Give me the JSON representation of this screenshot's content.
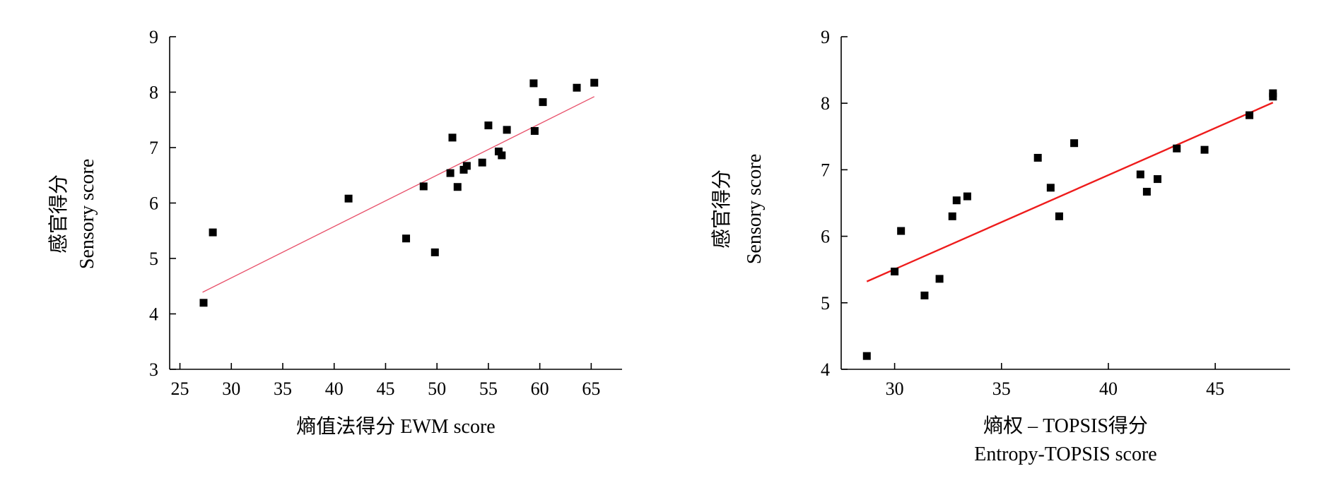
{
  "colors": {
    "axis": "#000000",
    "point": "#000000",
    "left_fit": "#e8506a",
    "right_fit": "#ee1c1c"
  },
  "chart_data": [
    {
      "type": "scatter",
      "title": "",
      "xlabel": "熵值法得分 EWM score",
      "xlabel_lines": [
        "熵值法得分 EWM score"
      ],
      "ylabel_cn": "感官得分",
      "ylabel_en": "Sensory score",
      "xlim": [
        24,
        68
      ],
      "ylim": [
        3,
        9
      ],
      "xticks": [
        25,
        30,
        35,
        40,
        45,
        50,
        55,
        60,
        65
      ],
      "yticks": [
        3,
        4,
        5,
        6,
        7,
        8,
        9
      ],
      "grid": false,
      "points": [
        {
          "x": 27.3,
          "y": 4.2
        },
        {
          "x": 28.2,
          "y": 5.47
        },
        {
          "x": 41.4,
          "y": 6.08
        },
        {
          "x": 47.0,
          "y": 5.36
        },
        {
          "x": 48.7,
          "y": 6.3
        },
        {
          "x": 49.8,
          "y": 5.11
        },
        {
          "x": 51.3,
          "y": 6.54
        },
        {
          "x": 51.5,
          "y": 7.18
        },
        {
          "x": 52.0,
          "y": 6.29
        },
        {
          "x": 52.6,
          "y": 6.6
        },
        {
          "x": 52.9,
          "y": 6.67
        },
        {
          "x": 54.4,
          "y": 6.73
        },
        {
          "x": 55.0,
          "y": 7.4
        },
        {
          "x": 56.0,
          "y": 6.93
        },
        {
          "x": 56.3,
          "y": 6.86
        },
        {
          "x": 56.8,
          "y": 7.32
        },
        {
          "x": 59.4,
          "y": 8.16
        },
        {
          "x": 59.5,
          "y": 7.3
        },
        {
          "x": 60.3,
          "y": 7.82
        },
        {
          "x": 63.6,
          "y": 8.08
        },
        {
          "x": 65.3,
          "y": 8.17
        }
      ],
      "fit_line": {
        "x": [
          27.2,
          65.3
        ],
        "y": [
          4.39,
          7.92
        ]
      }
    },
    {
      "type": "scatter",
      "title": "",
      "xlabel": "熵权 – TOPSIS得分 Entropy-TOPSIS  score",
      "xlabel_lines": [
        "熵权 – TOPSIS得分",
        "Entropy-TOPSIS  score"
      ],
      "ylabel_cn": "感官得分",
      "ylabel_en": "Sensory score",
      "xlim": [
        27.5,
        48.5
      ],
      "ylim": [
        4,
        9
      ],
      "xticks": [
        30,
        35,
        40,
        45
      ],
      "yticks": [
        4,
        5,
        6,
        7,
        8,
        9
      ],
      "grid": false,
      "points": [
        {
          "x": 28.7,
          "y": 4.2
        },
        {
          "x": 30.0,
          "y": 5.47
        },
        {
          "x": 30.3,
          "y": 6.08
        },
        {
          "x": 31.4,
          "y": 5.11
        },
        {
          "x": 32.1,
          "y": 5.36
        },
        {
          "x": 32.7,
          "y": 6.3
        },
        {
          "x": 32.9,
          "y": 6.54
        },
        {
          "x": 33.4,
          "y": 6.6
        },
        {
          "x": 36.7,
          "y": 7.18
        },
        {
          "x": 37.3,
          "y": 6.73
        },
        {
          "x": 37.7,
          "y": 6.3
        },
        {
          "x": 38.4,
          "y": 7.4
        },
        {
          "x": 41.5,
          "y": 6.93
        },
        {
          "x": 41.8,
          "y": 6.67
        },
        {
          "x": 42.3,
          "y": 6.86
        },
        {
          "x": 43.2,
          "y": 7.32
        },
        {
          "x": 44.5,
          "y": 7.3
        },
        {
          "x": 46.6,
          "y": 7.82
        },
        {
          "x": 47.7,
          "y": 8.1
        },
        {
          "x": 47.7,
          "y": 8.15
        }
      ],
      "fit_line": {
        "x": [
          28.7,
          47.7
        ],
        "y": [
          5.32,
          8.01
        ]
      }
    }
  ]
}
